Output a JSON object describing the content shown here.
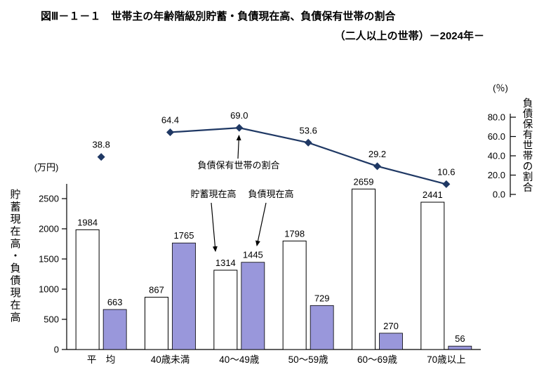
{
  "header": {
    "title": "図Ⅲ－１－１　世帯主の年齢階級別貯蓄・負債現在高、負債保有世帯の割合",
    "subtitle": "（二人以上の世帯）－2024年－"
  },
  "chart_data": {
    "type": "bar",
    "grid": false,
    "legend_position": "none",
    "categories": [
      "平　均",
      "40歳未満",
      "40～49歳",
      "50～59歳",
      "60～69歳",
      "70歳以上"
    ],
    "series": [
      {
        "name": "貯蓄現在高",
        "type": "bar",
        "axis": "left",
        "color": "#ffffff",
        "values": [
          1984,
          867,
          1314,
          1798,
          2659,
          2441
        ]
      },
      {
        "name": "負債現在高",
        "type": "bar",
        "axis": "left",
        "color": "#9997db",
        "values": [
          663,
          1765,
          1445,
          729,
          270,
          56
        ]
      },
      {
        "name": "負債保有世帯の割合",
        "type": "line",
        "axis": "right",
        "color": "#1f3864",
        "values": [
          38.8,
          64.4,
          69.0,
          53.6,
          29.2,
          10.6
        ],
        "connect_from_index": 1
      }
    ],
    "left_axis": {
      "unit": "(万円)",
      "label": "貯蓄現在高・負債現在高",
      "ticks": [
        0,
        500,
        1000,
        1500,
        2000,
        2500
      ],
      "max": 2500
    },
    "right_axis": {
      "unit": "(％)",
      "label": "負債保有世帯の割合",
      "ticks": [
        0,
        20,
        40,
        60,
        80
      ],
      "max": 80
    },
    "annotations": {
      "ratio": "負債保有世帯の割合",
      "savings": "貯蓄現在高",
      "liabilities": "負債現在高"
    }
  }
}
